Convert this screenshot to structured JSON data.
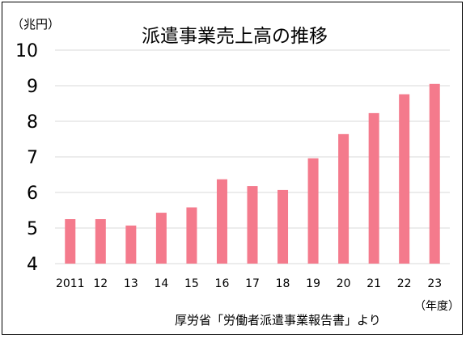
{
  "chart_data": {
    "type": "bar",
    "title": "派遣事業売上高の推移",
    "ylabel": "（兆円）",
    "xlabel": "（年度）",
    "source": "厚労省「労働者派遣事業報告書」より",
    "categories": [
      "2011",
      "12",
      "13",
      "14",
      "15",
      "16",
      "17",
      "18",
      "19",
      "20",
      "21",
      "22",
      "23"
    ],
    "series": [
      {
        "values": [
          5.25,
          5.25,
          5.07,
          5.43,
          5.58,
          6.37,
          6.18,
          6.07,
          6.96,
          7.64,
          8.23,
          8.76,
          9.05
        ]
      }
    ],
    "yticks": [
      4,
      5,
      6,
      7,
      8,
      9,
      10
    ],
    "ylim": [
      4,
      10
    ],
    "grid": true,
    "bar_color": "#f47a8c",
    "grid_color": "#d9d9d9"
  }
}
